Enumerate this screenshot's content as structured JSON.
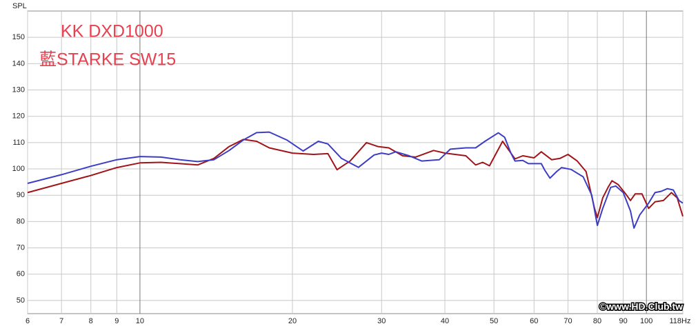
{
  "chart_data": {
    "type": "line",
    "y_axis_label": "SPL",
    "watermark": "©www.HD.Club.tw",
    "xscale": "log",
    "grid": true,
    "legend_color": "#e8404f",
    "legend_position": "upper left",
    "xlim": [
      6,
      118
    ],
    "ylim": [
      45,
      160
    ],
    "xticks": [
      6,
      7,
      8,
      9,
      10,
      20,
      30,
      40,
      50,
      60,
      70,
      80,
      90,
      100,
      {
        "value": 118,
        "label": "118Hz"
      }
    ],
    "yticks": [
      50,
      60,
      70,
      80,
      90,
      100,
      110,
      120,
      130,
      140,
      150
    ],
    "series": [
      {
        "name": "KK DXD1000",
        "color": "#a01418",
        "x": [
          6,
          7,
          8,
          9,
          10,
          11,
          12,
          13,
          14,
          15,
          16,
          17,
          18,
          20,
          22,
          23.5,
          24.5,
          26,
          28,
          29.5,
          31,
          33,
          35,
          38,
          40,
          44,
          46,
          47.5,
          49,
          52,
          54,
          55,
          57,
          60,
          62,
          65,
          67.5,
          70,
          73,
          76,
          79,
          80,
          82,
          84,
          85.5,
          88,
          91,
          93,
          95,
          98,
          101,
          104,
          108,
          112,
          115,
          118
        ],
        "values": [
          91,
          94.5,
          97.5,
          100.5,
          102.3,
          102.5,
          102,
          101.5,
          104,
          108.5,
          111.2,
          110.5,
          108,
          106,
          105.5,
          105.8,
          99.7,
          103,
          110,
          108.5,
          108,
          105,
          104.5,
          107,
          106,
          105,
          101.5,
          102.5,
          101.2,
          110.5,
          106,
          103.8,
          105,
          104.2,
          106.5,
          103.5,
          104,
          105.5,
          103,
          99,
          85,
          81.5,
          89,
          93,
          95.5,
          94,
          90.5,
          88,
          90.5,
          90.5,
          85,
          87.5,
          88,
          91,
          89,
          82
        ]
      },
      {
        "name": "藍STARKE SW15",
        "color": "#3c3cc4",
        "x": [
          6,
          7,
          8,
          9,
          10,
          11,
          12,
          13,
          14,
          15,
          16,
          17,
          18,
          19.5,
          21,
          22.5,
          23.5,
          25,
          27,
          29,
          30,
          31,
          32,
          34,
          36,
          39,
          41,
          44,
          46,
          48,
          51,
          52.5,
          54,
          55,
          57,
          58.5,
          62,
          63,
          64.5,
          66.5,
          68,
          71,
          75,
          78,
          80,
          82,
          85,
          87,
          90,
          93,
          94.5,
          97,
          101,
          104,
          107,
          110,
          113,
          116,
          118
        ],
        "values": [
          94.5,
          97.8,
          101,
          103.5,
          104.7,
          104.5,
          103.5,
          102.8,
          103.5,
          107,
          111,
          113.8,
          114,
          111,
          106.8,
          110.5,
          109.5,
          104,
          100.6,
          105.3,
          106,
          105.5,
          106.5,
          105,
          103,
          103.5,
          107.5,
          108,
          108,
          110.5,
          113.7,
          112,
          106,
          103,
          103.2,
          102,
          102,
          99.5,
          96.5,
          99,
          100.5,
          99.8,
          97,
          90,
          78.5,
          85,
          93,
          93.5,
          91,
          84,
          77.5,
          82.5,
          87,
          91,
          91.5,
          92.5,
          92,
          88,
          87
        ]
      }
    ]
  }
}
